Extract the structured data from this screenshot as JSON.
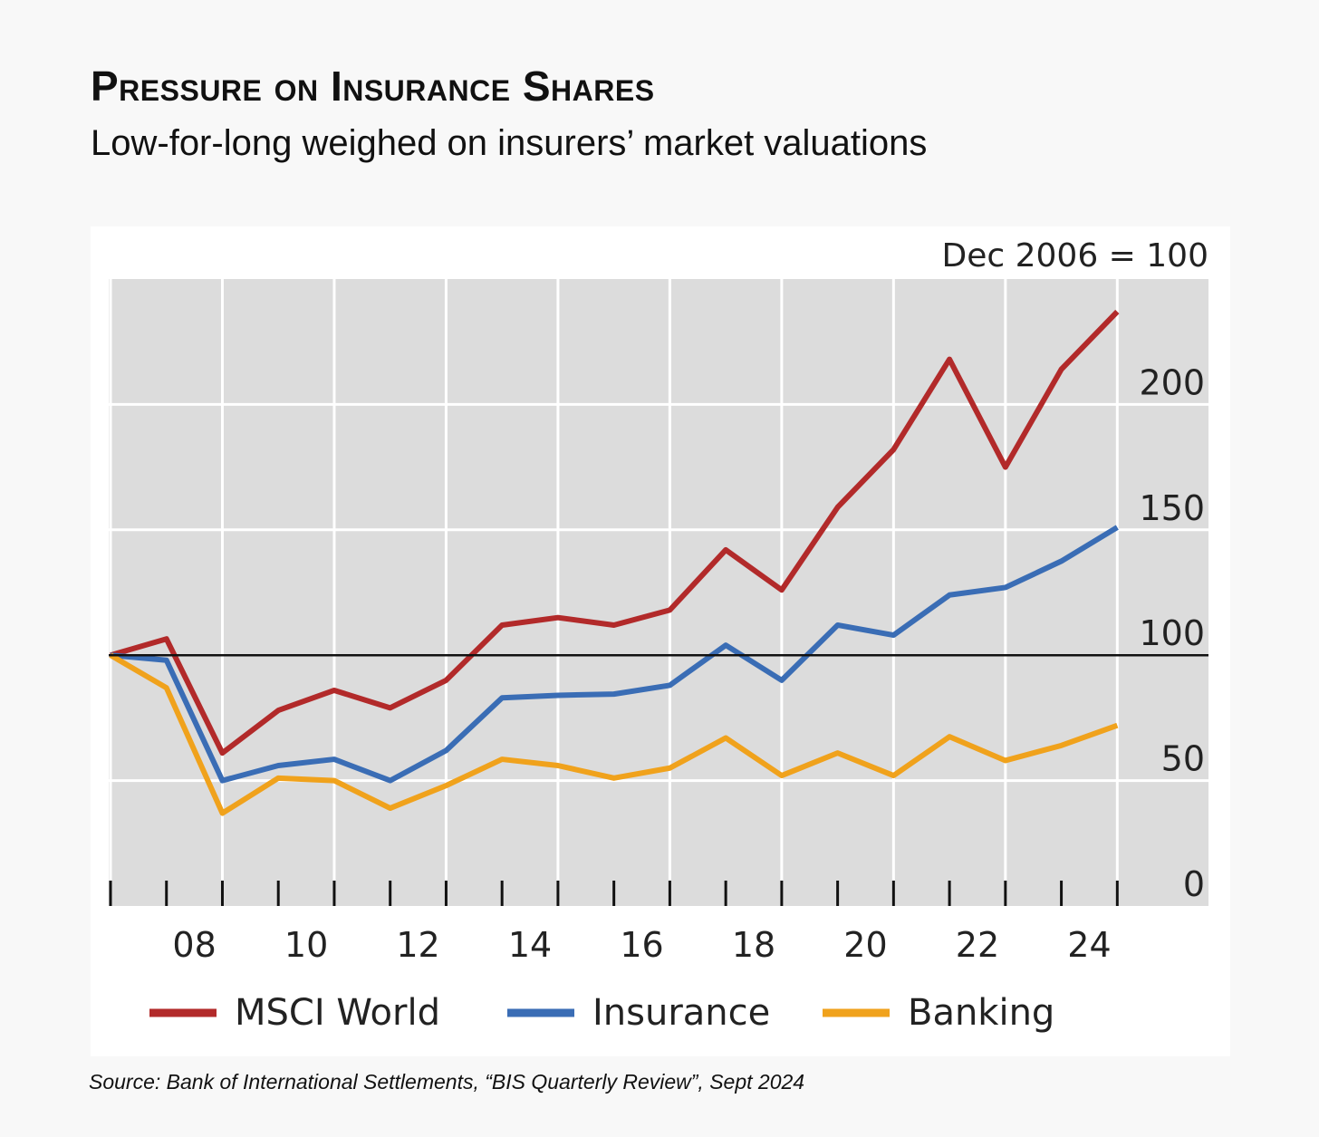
{
  "header": {
    "title": "Pressure on Insurance Shares",
    "subtitle": "Low-for-long weighed on insurers’ market valuations"
  },
  "source": "Source: Bank of International Settlements, “BIS Quarterly Review”, Sept 2024",
  "chart_data": {
    "type": "line",
    "title": "Pressure on Insurance Shares",
    "subtitle": "Low-for-long weighed on insurers’ market valuations",
    "unit_label": "Dec 2006 = 100",
    "xlabel": "",
    "ylabel": "",
    "x": [
      2006,
      2007,
      2008,
      2009,
      2010,
      2011,
      2012,
      2013,
      2014,
      2015,
      2016,
      2017,
      2018,
      2019,
      2020,
      2021,
      2022,
      2023,
      2024
    ],
    "x_tick_labels": [
      "08",
      "10",
      "12",
      "14",
      "16",
      "18",
      "20",
      "22",
      "24"
    ],
    "x_tick_years": [
      2008,
      2010,
      2012,
      2014,
      2016,
      2018,
      2020,
      2022,
      2024
    ],
    "y_ticks": [
      0,
      50,
      100,
      150,
      200
    ],
    "ylim": [
      0,
      250
    ],
    "reference_line": 100,
    "grid": true,
    "legend_position": "bottom",
    "series": [
      {
        "name": "MSCI World",
        "color": "#b22a2a",
        "values": [
          100,
          106.5,
          61,
          78,
          86,
          79,
          90,
          112,
          115,
          112,
          118,
          142,
          126,
          159,
          182,
          218,
          175,
          214,
          237
        ]
      },
      {
        "name": "Insurance",
        "color": "#3a6db5",
        "values": [
          100,
          98,
          50,
          56,
          58.5,
          50,
          62,
          83,
          84,
          84.5,
          88,
          104,
          90,
          112,
          108,
          124,
          127,
          137.5,
          151
        ]
      },
      {
        "name": "Banking",
        "color": "#f0a21c",
        "values": [
          100,
          87,
          37,
          51,
          50,
          39,
          48,
          58.5,
          56,
          51,
          55,
          67,
          52,
          61,
          52,
          67.5,
          58,
          64,
          72
        ]
      }
    ]
  }
}
